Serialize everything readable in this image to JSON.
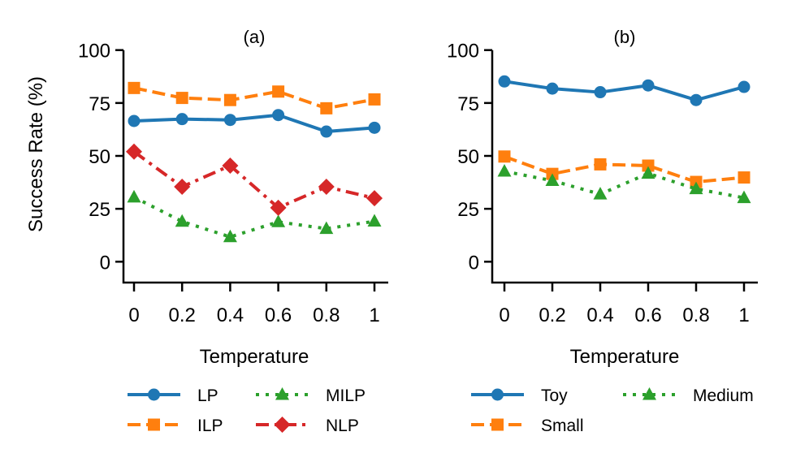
{
  "chart_data": [
    {
      "type": "line",
      "title": "(a)",
      "xlabel": "Temperature",
      "ylabel": "Success Rate (%)",
      "x": [
        0,
        0.2,
        0.4,
        0.6,
        0.8,
        1
      ],
      "xtick_labels": [
        "0",
        "0.2",
        "0.4",
        "0.6",
        "0.8",
        "1"
      ],
      "ylim": [
        -10,
        100
      ],
      "yticks": [
        0,
        25,
        50,
        75,
        100
      ],
      "ytick_labels": [
        "0",
        "25",
        "50",
        "75",
        "100"
      ],
      "grid": false,
      "legend_position": "bottom",
      "series": [
        {
          "name": "LP",
          "color": "#1f77b4",
          "marker": "circle",
          "linestyle": "solid",
          "values": [
            66.5,
            67.4,
            67.0,
            69.3,
            61.5,
            63.3
          ]
        },
        {
          "name": "ILP",
          "color": "#ff7f0e",
          "marker": "square",
          "linestyle": "dashed",
          "values": [
            82.1,
            77.4,
            76.4,
            80.4,
            72.5,
            76.7
          ]
        },
        {
          "name": "MILP",
          "color": "#2ca02c",
          "marker": "triangle",
          "linestyle": "dotted",
          "values": [
            30.5,
            19.0,
            11.7,
            18.8,
            15.6,
            19.1
          ]
        },
        {
          "name": "NLP",
          "color": "#d62728",
          "marker": "diamond",
          "linestyle": "dashdot",
          "values": [
            52.0,
            35.4,
            45.4,
            25.5,
            35.4,
            30.0
          ]
        }
      ],
      "legend_order": [
        "LP",
        "ILP",
        "MILP",
        "NLP"
      ]
    },
    {
      "type": "line",
      "title": "(b)",
      "xlabel": "Temperature",
      "ylabel": "",
      "x": [
        0,
        0.2,
        0.4,
        0.6,
        0.8,
        1
      ],
      "xtick_labels": [
        "0",
        "0.2",
        "0.4",
        "0.6",
        "0.8",
        "1"
      ],
      "ylim": [
        -10,
        100
      ],
      "yticks": [
        0,
        25,
        50,
        75,
        100
      ],
      "ytick_labels": [
        "0",
        "25",
        "50",
        "75",
        "100"
      ],
      "grid": false,
      "legend_position": "bottom",
      "series": [
        {
          "name": "Toy",
          "color": "#1f77b4",
          "marker": "circle",
          "linestyle": "solid",
          "values": [
            85.2,
            81.8,
            80.1,
            83.3,
            76.4,
            82.6
          ]
        },
        {
          "name": "Small",
          "color": "#ff7f0e",
          "marker": "square",
          "linestyle": "dashed",
          "values": [
            49.7,
            41.5,
            46.0,
            45.4,
            37.7,
            39.8
          ]
        },
        {
          "name": "Medium",
          "color": "#2ca02c",
          "marker": "triangle",
          "linestyle": "dotted",
          "values": [
            42.7,
            38.3,
            31.9,
            41.7,
            34.4,
            30.2
          ]
        }
      ],
      "legend_order": [
        "Toy",
        "Small",
        "Medium"
      ]
    }
  ]
}
